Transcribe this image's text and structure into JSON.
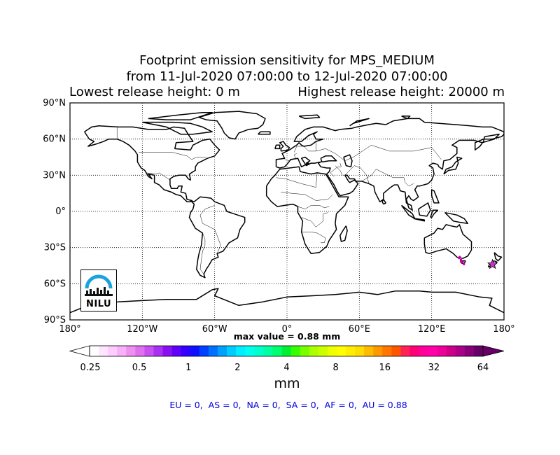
{
  "title": {
    "line1": "Footprint emission sensitivity for MPS_MEDIUM",
    "line2": "from 11-Jul-2020 07:00:00 to 12-Jul-2020 07:00:00",
    "lowest": "Lowest release height: 0 m",
    "highest": "Highest release height: 20000 m"
  },
  "map": {
    "projection": "cylindrical equidistant",
    "lon_range": [
      -180,
      180
    ],
    "lat_range": [
      -90,
      90
    ],
    "grid": true,
    "lat_labels": [
      "90°N",
      "60°N",
      "30°N",
      "0°",
      "30°S",
      "60°S",
      "90°S"
    ],
    "lon_labels": [
      "180°",
      "120°W",
      "60°W",
      "0°",
      "60°E",
      "120°E",
      "180°"
    ],
    "release_point": {
      "lon": 170.5,
      "lat": -44.0,
      "symbol": "star",
      "color": "#cc33cc"
    },
    "logo_text": "NILU"
  },
  "max_value": "max value = 0.88 mm",
  "colorbar": {
    "tick_labels": [
      "0.25",
      "0.5",
      "1",
      "2",
      "4",
      "8",
      "16",
      "32",
      "64"
    ],
    "unit": "mm",
    "colors": [
      "#ffffff",
      "#ffe6ff",
      "#ffccff",
      "#f8b0f8",
      "#ee90ee",
      "#e070f0",
      "#c850f0",
      "#a830f0",
      "#8810f0",
      "#5f00f8",
      "#3300ff",
      "#1010ff",
      "#0040ff",
      "#0070ff",
      "#00a0ff",
      "#00ccff",
      "#00eeff",
      "#00ffee",
      "#00ffcc",
      "#00ffa0",
      "#00ff70",
      "#00ee33",
      "#33ff00",
      "#77ff00",
      "#aaff00",
      "#ccff00",
      "#eeff00",
      "#ffff00",
      "#ffee00",
      "#ffdd00",
      "#ffbb00",
      "#ff9900",
      "#ff7700",
      "#ff5500",
      "#ff2255",
      "#ff0077",
      "#ff0099",
      "#ff00aa",
      "#ee0099",
      "#cc0088",
      "#aa0088",
      "#880077",
      "#660066"
    ]
  },
  "regions": "EU = 0,  AS = 0,  NA = 0,  SA = 0,  AF = 0,  AU = 0.88"
}
